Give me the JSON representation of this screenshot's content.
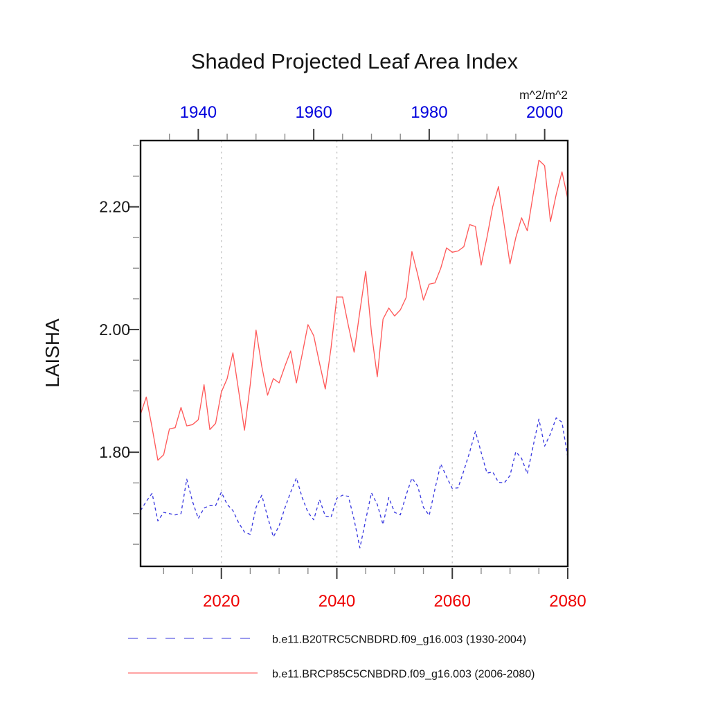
{
  "chart_data": {
    "type": "line",
    "title": "Shaded Projected Leaf Area Index",
    "units": "m^2/m^2",
    "ylabel": "LAISHA",
    "ylim": [
      1.614,
      2.308
    ],
    "grid": "vertical-dotted-only",
    "legend_position": "below",
    "y_axis": {
      "major": [
        1.8,
        2.0,
        2.2
      ],
      "major_labels": [
        "1.80",
        "2.00",
        "2.20"
      ],
      "minor_step": 0.05,
      "minor_min": 1.65,
      "minor_max": 2.3,
      "label_color": "#1a1a1a"
    },
    "top_axis": {
      "range": [
        1930,
        2004
      ],
      "major": [
        1940,
        1960,
        1980,
        2000
      ],
      "major_labels": [
        "1940",
        "1960",
        "1980",
        "2000"
      ],
      "minor_step": 5,
      "label_color": "#0000dd"
    },
    "bottom_axis": {
      "range": [
        2006,
        2080
      ],
      "major": [
        2020,
        2040,
        2060,
        2080
      ],
      "major_labels": [
        "2020",
        "2040",
        "2060",
        "2080"
      ],
      "minor_step": 5,
      "label_color": "#ee0000"
    },
    "gridlines": {
      "years": [
        2020,
        2040,
        2060
      ],
      "color": "#c9c9c9"
    },
    "series": [
      {
        "name": "b.e11.B20TRC5CNBDRD.f09_g16.003 (1930-2004)",
        "axis": "top",
        "start_year": 1930,
        "style": "dashed",
        "color": "#3a3ae0",
        "legend_color": "#8c8cec",
        "values": [
          1.705,
          1.72,
          1.733,
          1.688,
          1.702,
          1.7,
          1.698,
          1.7,
          1.756,
          1.72,
          1.692,
          1.709,
          1.713,
          1.713,
          1.735,
          1.715,
          1.705,
          1.685,
          1.67,
          1.666,
          1.71,
          1.73,
          1.695,
          1.662,
          1.68,
          1.709,
          1.735,
          1.758,
          1.726,
          1.702,
          1.69,
          1.723,
          1.696,
          1.694,
          1.725,
          1.73,
          1.728,
          1.69,
          1.644,
          1.69,
          1.734,
          1.715,
          1.682,
          1.726,
          1.702,
          1.698,
          1.73,
          1.758,
          1.745,
          1.71,
          1.697,
          1.74,
          1.781,
          1.76,
          1.741,
          1.742,
          1.77,
          1.8,
          1.834,
          1.8,
          1.766,
          1.768,
          1.751,
          1.75,
          1.762,
          1.801,
          1.79,
          1.765,
          1.81,
          1.854,
          1.81,
          1.83,
          1.856,
          1.849,
          1.792
        ]
      },
      {
        "name": "b.e11.BRCP85C5CNBDRD.f09_g16.003 (2006-2080)",
        "axis": "bottom",
        "start_year": 2006,
        "style": "solid",
        "color": "#ff5a5a",
        "legend_color": "#ff6a6a",
        "values": [
          1.862,
          1.89,
          1.84,
          1.787,
          1.796,
          1.838,
          1.84,
          1.873,
          1.843,
          1.845,
          1.853,
          1.91,
          1.837,
          1.847,
          1.898,
          1.92,
          1.962,
          1.9,
          1.836,
          1.91,
          1.999,
          1.94,
          1.893,
          1.92,
          1.913,
          1.94,
          1.965,
          1.913,
          1.96,
          2.008,
          1.99,
          1.945,
          1.903,
          1.97,
          2.053,
          2.053,
          2.006,
          1.963,
          2.03,
          2.095,
          1.995,
          1.923,
          2.017,
          2.035,
          2.022,
          2.032,
          2.052,
          2.127,
          2.09,
          2.048,
          2.074,
          2.076,
          2.1,
          2.133,
          2.126,
          2.128,
          2.135,
          2.171,
          2.168,
          2.105,
          2.15,
          2.2,
          2.233,
          2.17,
          2.107,
          2.15,
          2.182,
          2.161,
          2.22,
          2.276,
          2.267,
          2.176,
          2.22,
          2.257,
          2.213
        ]
      }
    ]
  }
}
